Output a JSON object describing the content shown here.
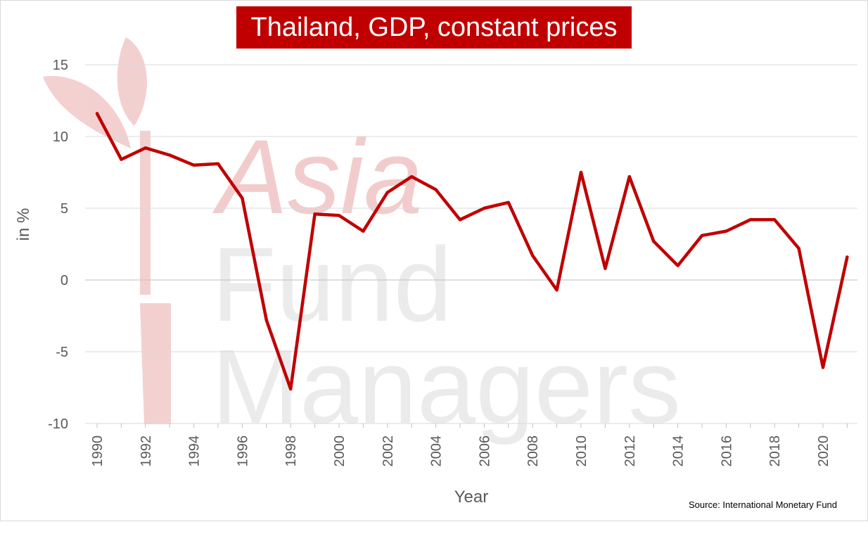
{
  "watermark": {
    "line1": "Asia",
    "line2": "Fund",
    "line3": "Managers"
  },
  "source_text": "Source: International Monetary Fund",
  "colors": {
    "line": "#c00000",
    "title_bg": "#c00000",
    "grid": "#d9d9d9",
    "watermark_pink": "#f2cccc",
    "watermark_gray": "#ebebeb"
  },
  "chart_data": {
    "type": "line",
    "title": "Thailand, GDP, constant prices",
    "xlabel": "Year",
    "ylabel": "in %",
    "ylim": [
      -10,
      15
    ],
    "yticks": [
      15,
      10,
      5,
      0,
      -5,
      -10
    ],
    "xticks": [
      1990,
      1992,
      1994,
      1996,
      1998,
      2000,
      2002,
      2004,
      2006,
      2008,
      2010,
      2012,
      2014,
      2016,
      2018,
      2020
    ],
    "grid": true,
    "x": [
      1990,
      1991,
      1992,
      1993,
      1994,
      1995,
      1996,
      1997,
      1998,
      1999,
      2000,
      2001,
      2002,
      2003,
      2004,
      2005,
      2006,
      2007,
      2008,
      2009,
      2010,
      2011,
      2012,
      2013,
      2014,
      2015,
      2016,
      2017,
      2018,
      2019,
      2020,
      2021
    ],
    "series": [
      {
        "values": [
          11.6,
          8.4,
          9.2,
          8.7,
          8.0,
          8.1,
          5.7,
          -2.8,
          -7.6,
          4.6,
          4.5,
          3.4,
          6.1,
          7.2,
          6.3,
          4.2,
          5.0,
          5.4,
          1.7,
          -0.7,
          7.5,
          0.8,
          7.2,
          2.7,
          1.0,
          3.1,
          3.4,
          4.2,
          4.2,
          2.2,
          -6.1,
          1.6
        ]
      }
    ]
  }
}
